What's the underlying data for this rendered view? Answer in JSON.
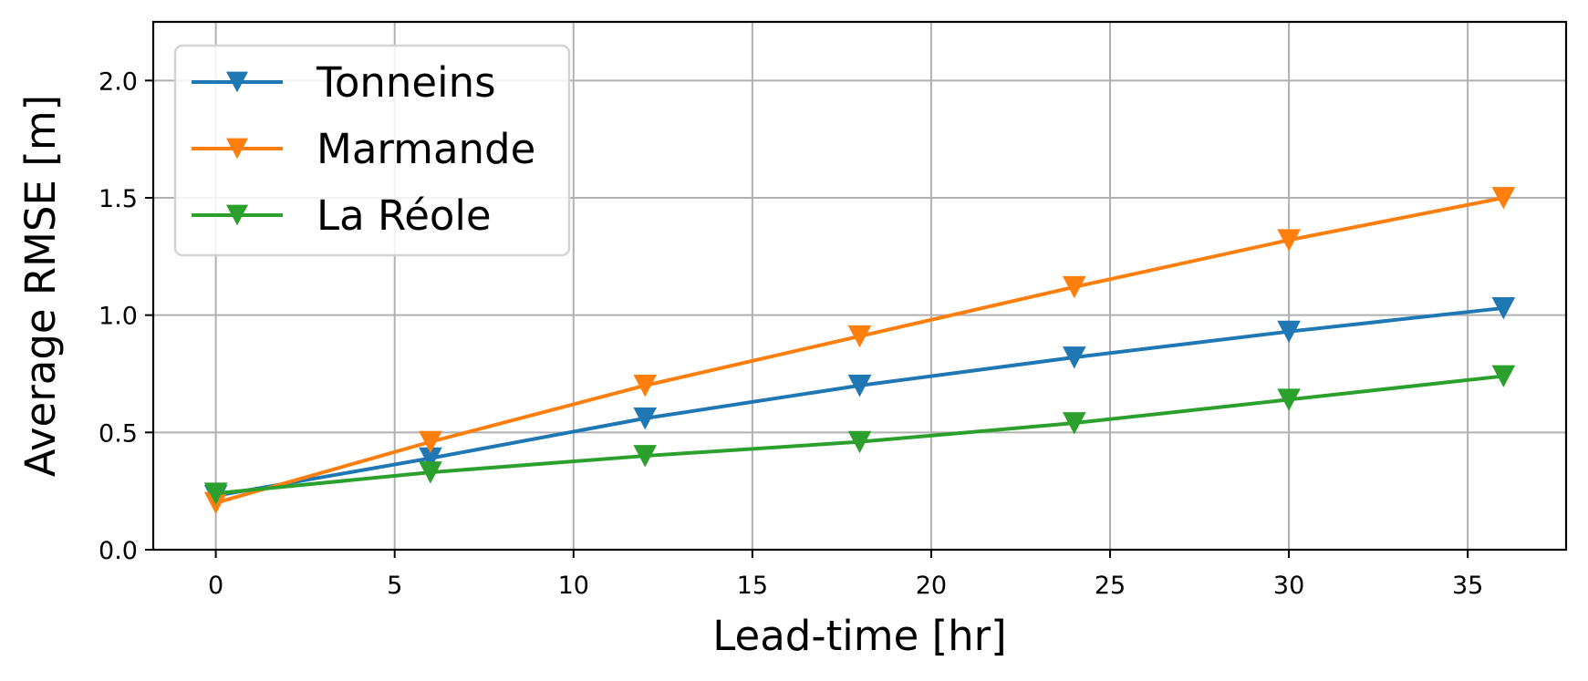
{
  "chart_data": {
    "type": "line",
    "title": "",
    "xlabel": "Lead-time [hr]",
    "ylabel": "Average RMSE [m]",
    "xlim": [
      -1.75,
      37.75
    ],
    "ylim": [
      0,
      2.25
    ],
    "xticks": [
      0,
      5,
      10,
      15,
      20,
      25,
      30,
      35
    ],
    "xtick_labels": [
      "0",
      "5",
      "10",
      "15",
      "20",
      "25",
      "30",
      "35"
    ],
    "yticks": [
      0,
      0.5,
      1.0,
      1.5,
      2.0
    ],
    "ytick_labels": [
      "0.0",
      "0.5",
      "1.0",
      "1.5",
      "2.0"
    ],
    "grid": true,
    "legend_position": "top-left",
    "marker": "triangle-down",
    "x": [
      0,
      6,
      12,
      18,
      24,
      30,
      36
    ],
    "series": [
      {
        "name": "Tonneins",
        "color": "#1f77b4",
        "values": [
          0.23,
          0.39,
          0.56,
          0.7,
          0.82,
          0.93,
          1.03
        ]
      },
      {
        "name": "Marmande",
        "color": "#ff7f0e",
        "values": [
          0.2,
          0.46,
          0.7,
          0.91,
          1.12,
          1.32,
          1.5
        ]
      },
      {
        "name": "La Réole",
        "color": "#2ca02c",
        "values": [
          0.24,
          0.33,
          0.4,
          0.46,
          0.54,
          0.64,
          0.74
        ]
      }
    ]
  }
}
